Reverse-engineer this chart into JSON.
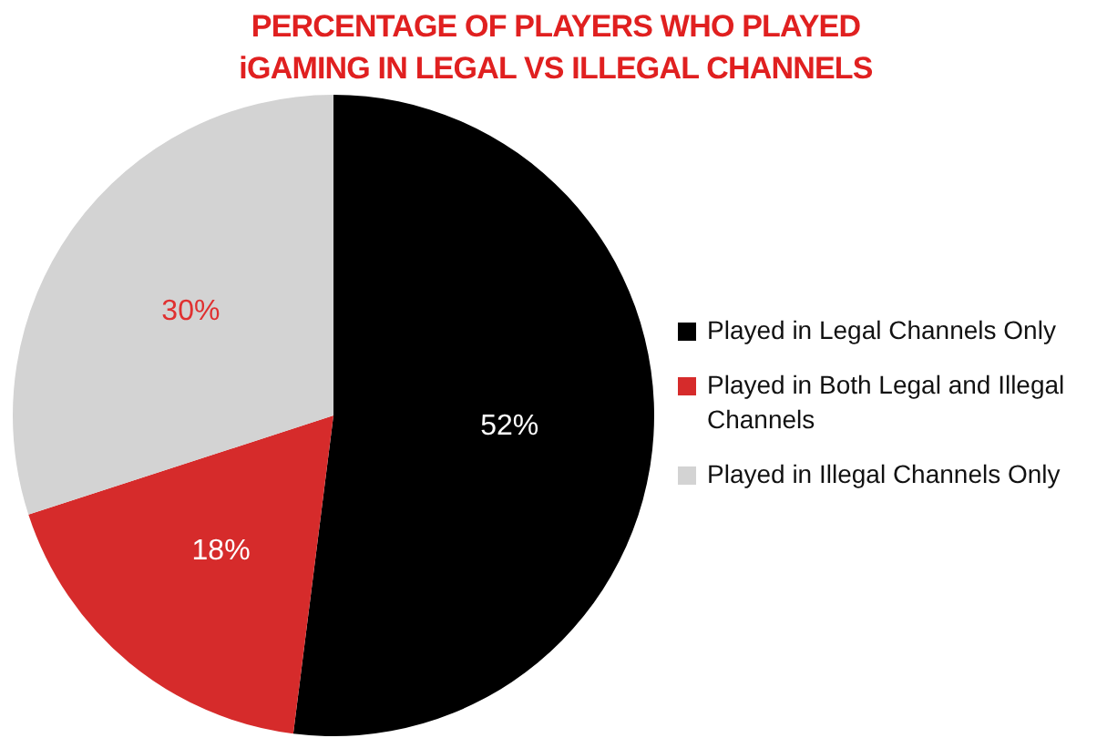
{
  "chart_data": {
    "type": "pie",
    "title": "PERCENTAGE OF PLAYERS WHO PLAYED\niGAMING IN LEGAL VS ILLEGAL CHANNELS",
    "categories": [
      "Played in Legal Channels Only",
      "Played in Both Legal and Illegal Channels",
      "Played in Illegal Channels Only"
    ],
    "values": [
      52,
      18,
      30
    ],
    "colors": [
      "#000000",
      "#d62b2b",
      "#d3d3d3"
    ],
    "value_labels": [
      "52%",
      "18%",
      "30%"
    ],
    "legend": "right"
  }
}
